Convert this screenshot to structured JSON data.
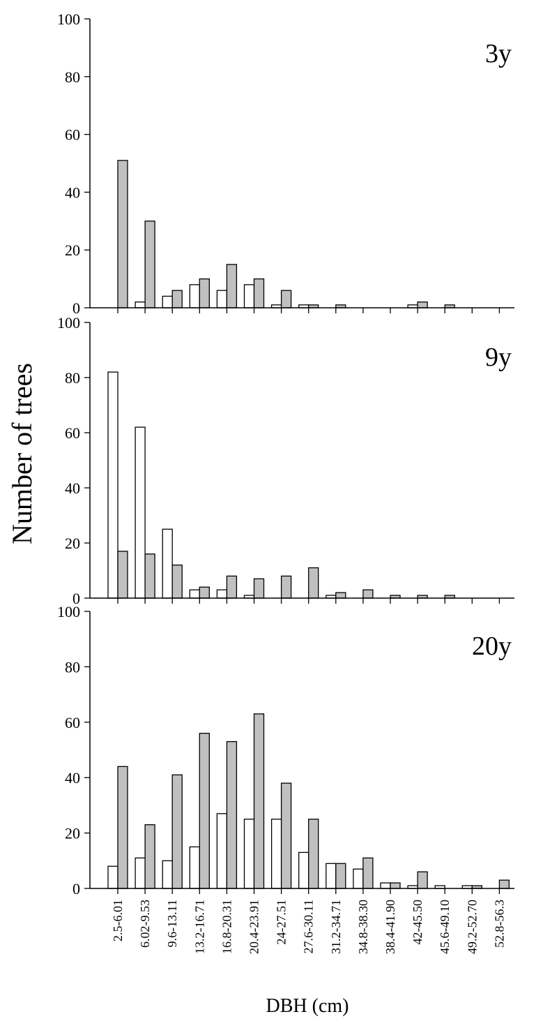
{
  "chart_data": {
    "type": "bar",
    "xlabel": "DBH (cm)",
    "ylabel": "Number of trees",
    "ylim": [
      0,
      100
    ],
    "yticks": [
      0,
      20,
      40,
      60,
      80,
      100
    ],
    "categories": [
      "2.5-6.01",
      "6.02-9.53",
      "9.6-13.11",
      "13.2-16.71",
      "16.8-20.31",
      "20.4-23.91",
      "24-27.51",
      "27.6-30.11",
      "31.2-34.71",
      "34.8-38.30",
      "38.4-41.90",
      "42-45.50",
      "45.6-49.10",
      "49.2-52.70",
      "52.8-56.3"
    ],
    "colors": {
      "white_series": "#ffffff",
      "gray_series": "#c0c0c0",
      "outline": "#000000"
    },
    "panels": [
      {
        "label": "3y",
        "series": [
          {
            "fill": "white",
            "values": [
              0,
              2,
              4,
              8,
              6,
              8,
              1,
              1,
              0,
              0,
              0,
              1,
              0,
              0,
              0
            ]
          },
          {
            "fill": "gray",
            "values": [
              51,
              30,
              6,
              10,
              15,
              10,
              6,
              1,
              1,
              0,
              0,
              2,
              1,
              0,
              0
            ]
          }
        ]
      },
      {
        "label": "9y",
        "series": [
          {
            "fill": "white",
            "values": [
              82,
              62,
              25,
              3,
              3,
              1,
              0,
              0,
              1,
              0,
              0,
              0,
              0,
              0,
              0
            ]
          },
          {
            "fill": "gray",
            "values": [
              17,
              16,
              12,
              4,
              8,
              7,
              8,
              11,
              2,
              3,
              1,
              1,
              1,
              0,
              0
            ]
          }
        ]
      },
      {
        "label": "20y",
        "series": [
          {
            "fill": "white",
            "values": [
              8,
              11,
              10,
              15,
              27,
              25,
              25,
              13,
              9,
              7,
              2,
              1,
              1,
              1,
              0
            ]
          },
          {
            "fill": "gray",
            "values": [
              44,
              23,
              41,
              56,
              53,
              63,
              38,
              25,
              9,
              11,
              2,
              6,
              0,
              1,
              3
            ]
          }
        ]
      }
    ]
  }
}
